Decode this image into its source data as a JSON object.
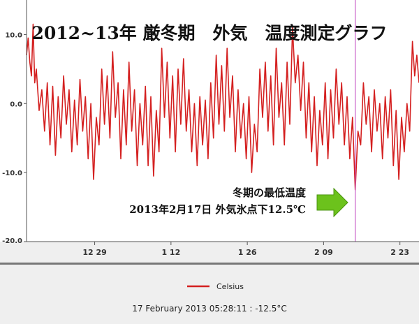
{
  "chart_data": {
    "type": "line",
    "title": "2012~13年 厳冬期　外気　温度測定グラフ",
    "xlabel": "",
    "ylabel": "",
    "xlim": [
      0,
      72
    ],
    "ylim": [
      -20,
      15
    ],
    "y_ticks": [
      {
        "value": 10,
        "label": "10.0"
      },
      {
        "value": 0,
        "label": "0.0"
      },
      {
        "value": -10,
        "label": "-10.0"
      },
      {
        "value": -20,
        "label": "-20.0"
      }
    ],
    "x_ticks": [
      {
        "value": 12.5,
        "label": "12 29"
      },
      {
        "value": 26.5,
        "label": "1 12"
      },
      {
        "value": 40.5,
        "label": "1 26"
      },
      {
        "value": 54.5,
        "label": "2 09"
      },
      {
        "value": 68.5,
        "label": "2 23"
      }
    ],
    "grid": false,
    "legend": "bottom",
    "series": [
      {
        "name": "Celsius",
        "color": "#d42020",
        "points": [
          [
            0.0,
            7.0
          ],
          [
            0.3,
            9.5
          ],
          [
            0.6,
            6.0
          ],
          [
            0.9,
            4.0
          ],
          [
            1.2,
            11.5
          ],
          [
            1.5,
            3.0
          ],
          [
            1.8,
            5.0
          ],
          [
            2.3,
            -1.0
          ],
          [
            2.8,
            2.0
          ],
          [
            3.3,
            -4.0
          ],
          [
            3.8,
            3.0
          ],
          [
            4.3,
            -6.0
          ],
          [
            4.8,
            2.5
          ],
          [
            5.3,
            -7.5
          ],
          [
            5.8,
            1.0
          ],
          [
            6.3,
            -5.0
          ],
          [
            6.8,
            4.0
          ],
          [
            7.3,
            -3.0
          ],
          [
            7.8,
            2.0
          ],
          [
            8.3,
            -7.0
          ],
          [
            8.8,
            0.5
          ],
          [
            9.3,
            -6.0
          ],
          [
            9.8,
            3.5
          ],
          [
            10.3,
            -4.0
          ],
          [
            10.8,
            1.0
          ],
          [
            11.3,
            -8.0
          ],
          [
            11.8,
            0.0
          ],
          [
            12.3,
            -11.0
          ],
          [
            12.8,
            -2.0
          ],
          [
            13.3,
            -6.0
          ],
          [
            13.8,
            5.0
          ],
          [
            14.3,
            -3.0
          ],
          [
            14.8,
            4.0
          ],
          [
            15.3,
            -5.0
          ],
          [
            15.8,
            7.5
          ],
          [
            16.3,
            -2.0
          ],
          [
            16.8,
            3.0
          ],
          [
            17.3,
            -8.0
          ],
          [
            17.8,
            2.0
          ],
          [
            18.3,
            -6.0
          ],
          [
            18.8,
            6.0
          ],
          [
            19.3,
            -4.0
          ],
          [
            19.8,
            2.0
          ],
          [
            20.3,
            -9.0
          ],
          [
            20.8,
            0.0
          ],
          [
            21.3,
            -6.0
          ],
          [
            21.8,
            2.5
          ],
          [
            22.3,
            -9.0
          ],
          [
            22.8,
            1.0
          ],
          [
            23.3,
            -10.5
          ],
          [
            23.8,
            -1.0
          ],
          [
            24.3,
            -7.0
          ],
          [
            24.8,
            8.0
          ],
          [
            25.3,
            -2.0
          ],
          [
            25.8,
            6.0
          ],
          [
            26.3,
            -5.0
          ],
          [
            26.8,
            4.0
          ],
          [
            27.3,
            -7.0
          ],
          [
            27.8,
            5.0
          ],
          [
            28.3,
            -3.0
          ],
          [
            28.8,
            6.5
          ],
          [
            29.3,
            -4.0
          ],
          [
            29.8,
            2.0
          ],
          [
            30.3,
            -7.0
          ],
          [
            30.8,
            0.0
          ],
          [
            31.3,
            -9.0
          ],
          [
            31.8,
            1.0
          ],
          [
            32.3,
            -6.0
          ],
          [
            32.8,
            0.5
          ],
          [
            33.3,
            -8.0
          ],
          [
            33.8,
            3.0
          ],
          [
            34.3,
            -5.0
          ],
          [
            34.8,
            7.0
          ],
          [
            35.3,
            -3.0
          ],
          [
            35.8,
            5.5
          ],
          [
            36.3,
            -4.0
          ],
          [
            36.8,
            8.0
          ],
          [
            37.3,
            -2.0
          ],
          [
            37.8,
            4.0
          ],
          [
            38.3,
            -7.0
          ],
          [
            38.8,
            2.0
          ],
          [
            39.3,
            -5.0
          ],
          [
            39.8,
            0.0
          ],
          [
            40.3,
            -8.0
          ],
          [
            40.8,
            1.0
          ],
          [
            41.3,
            -10.0
          ],
          [
            41.8,
            -3.0
          ],
          [
            42.3,
            -7.0
          ],
          [
            42.8,
            5.0
          ],
          [
            43.3,
            -2.0
          ],
          [
            43.8,
            6.0
          ],
          [
            44.3,
            -4.0
          ],
          [
            44.8,
            4.0
          ],
          [
            45.3,
            -6.0
          ],
          [
            45.8,
            8.0
          ],
          [
            46.3,
            -2.0
          ],
          [
            46.8,
            3.0
          ],
          [
            47.3,
            -6.0
          ],
          [
            47.8,
            6.0
          ],
          [
            48.3,
            -3.0
          ],
          [
            48.8,
            11.0
          ],
          [
            49.3,
            3.0
          ],
          [
            49.8,
            7.0
          ],
          [
            50.3,
            -1.0
          ],
          [
            50.8,
            6.0
          ],
          [
            51.3,
            -5.0
          ],
          [
            51.8,
            3.0
          ],
          [
            52.3,
            -7.0
          ],
          [
            52.8,
            1.0
          ],
          [
            53.3,
            -9.0
          ],
          [
            53.8,
            -1.0
          ],
          [
            54.3,
            -6.0
          ],
          [
            54.8,
            3.0
          ],
          [
            55.3,
            -8.0
          ],
          [
            55.8,
            2.0
          ],
          [
            56.3,
            -5.0
          ],
          [
            56.8,
            5.0
          ],
          [
            57.3,
            -3.0
          ],
          [
            57.8,
            3.0
          ],
          [
            58.3,
            -6.0
          ],
          [
            58.8,
            1.0
          ],
          [
            59.3,
            -8.0
          ],
          [
            59.8,
            -2.0
          ],
          [
            60.3,
            -12.5
          ],
          [
            60.8,
            -4.0
          ],
          [
            61.3,
            -6.0
          ],
          [
            61.8,
            3.0
          ],
          [
            62.3,
            -3.0
          ],
          [
            62.8,
            1.0
          ],
          [
            63.3,
            -7.0
          ],
          [
            63.8,
            2.0
          ],
          [
            64.3,
            -4.0
          ],
          [
            64.8,
            0.0
          ],
          [
            65.3,
            -8.0
          ],
          [
            65.8,
            1.0
          ],
          [
            66.3,
            -5.0
          ],
          [
            66.8,
            2.0
          ],
          [
            67.3,
            -9.0
          ],
          [
            67.8,
            -1.0
          ],
          [
            68.3,
            -11.0
          ],
          [
            68.8,
            -2.0
          ],
          [
            69.3,
            -7.0
          ],
          [
            69.8,
            0.0
          ],
          [
            70.3,
            -4.0
          ],
          [
            70.8,
            9.0
          ],
          [
            71.2,
            4.0
          ],
          [
            71.6,
            7.0
          ],
          [
            72.0,
            3.0
          ]
        ]
      }
    ],
    "marker": {
      "x": 60.3,
      "color": "#c85cc8"
    },
    "annotation": {
      "line1": "冬期の最低温度",
      "line2": "2013年2月17日 外気氷点下12.5℃",
      "arrow_color": "#6cc21c"
    },
    "status_text": "17 February 2013 05:28:11 : -12.5°C"
  }
}
